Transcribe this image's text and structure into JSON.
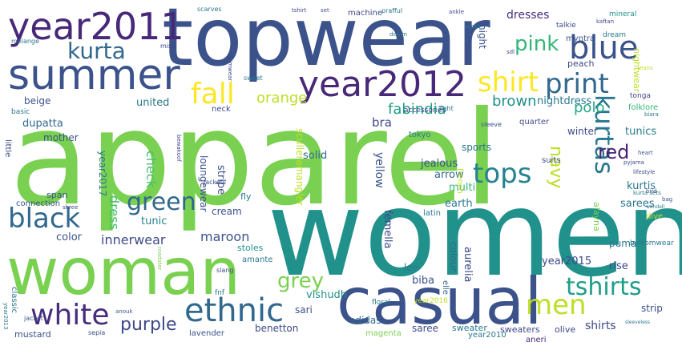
{
  "words": [
    {
      "text": "apparel",
      "color": "#7ad151",
      "rot": 0
    },
    {
      "text": "women",
      "color": "#21918c",
      "rot": 0
    },
    {
      "text": "topwear",
      "color": "#3b528b",
      "rot": 0
    },
    {
      "text": "woman",
      "color": "#7ad151",
      "rot": 0
    },
    {
      "text": "casual",
      "color": "#3b528b",
      "rot": 0
    },
    {
      "text": "summer",
      "color": "#3b528b",
      "rot": 0
    },
    {
      "text": "year2011",
      "color": "#482878",
      "rot": 0
    },
    {
      "text": "year2012",
      "color": "#482878",
      "rot": 0
    },
    {
      "text": "ethnic",
      "color": "#31688e",
      "rot": 0
    },
    {
      "text": "white",
      "color": "#472d7b",
      "rot": 0
    },
    {
      "text": "blue",
      "color": "#3b528b",
      "rot": 0
    },
    {
      "text": "print",
      "color": "#31688e",
      "rot": 0
    },
    {
      "text": "fall",
      "color": "#fde725",
      "rot": 0
    },
    {
      "text": "shirt",
      "color": "#fde725",
      "rot": 0
    },
    {
      "text": "kurta",
      "color": "#31688e",
      "rot": 0
    },
    {
      "text": "kurtas",
      "color": "#2a788e",
      "rot": 90
    },
    {
      "text": "tops",
      "color": "#26828e",
      "rot": 0
    },
    {
      "text": "black",
      "color": "#31688e",
      "rot": 0
    },
    {
      "text": "green",
      "color": "#31688e",
      "rot": 0
    },
    {
      "text": "men",
      "color": "#bddf26",
      "rot": 0
    },
    {
      "text": "tshirts",
      "color": "#1f9e89",
      "rot": 0
    },
    {
      "text": "pink",
      "color": "#35b779",
      "rot": 0
    },
    {
      "text": "grey",
      "color": "#7ad151",
      "rot": 0
    },
    {
      "text": "red",
      "color": "#481f71",
      "rot": 0
    },
    {
      "text": "purple",
      "color": "#3e4989",
      "rot": 0
    },
    {
      "text": "brown",
      "color": "#21918c",
      "rot": 0
    },
    {
      "text": "navy",
      "color": "#bddf26",
      "rot": 0
    },
    {
      "text": "orange",
      "color": "#bddf26",
      "rot": 0
    },
    {
      "text": "fabindia",
      "color": "#1f9e89",
      "rot": 0
    },
    {
      "text": "polo",
      "color": "#22a884",
      "rot": 0
    },
    {
      "text": "dresses",
      "color": "#472d7b",
      "rot": 0
    },
    {
      "text": "nightdress",
      "color": "#2a788e",
      "rot": 0
    },
    {
      "text": "dress",
      "color": "#44bf70",
      "rot": 90
    },
    {
      "text": "check",
      "color": "#44bf70",
      "rot": 90
    },
    {
      "text": "innerwear",
      "color": "#3e4989",
      "rot": 0
    },
    {
      "text": "maroon",
      "color": "#3b528b",
      "rot": 0
    },
    {
      "text": "shirts",
      "color": "#3e4989",
      "rot": 0
    },
    {
      "text": "kurtis",
      "color": "#2a788e",
      "rot": 0
    },
    {
      "text": "sarees",
      "color": "#2a788e",
      "rot": 0
    },
    {
      "text": "tunics",
      "color": "#2a788e",
      "rot": 0
    },
    {
      "text": "folklore",
      "color": "#35b779",
      "rot": 0
    },
    {
      "text": "winter",
      "color": "#3e4989",
      "rot": 0
    },
    {
      "text": "united",
      "color": "#2a788e",
      "rot": 0
    },
    {
      "text": "jealous",
      "color": "#3b528b",
      "rot": 0
    },
    {
      "text": "arrow",
      "color": "#31688e",
      "rot": 0
    },
    {
      "text": "multi",
      "color": "#35b779",
      "rot": 0
    },
    {
      "text": "earth",
      "color": "#2a788e",
      "rot": 0
    },
    {
      "text": "bra",
      "color": "#3e4989",
      "rot": 0
    },
    {
      "text": "sports",
      "color": "#2a788e",
      "rot": 0
    },
    {
      "text": "solid",
      "color": "#31688e",
      "rot": 0
    },
    {
      "text": "stripe",
      "color": "#3b528b",
      "rot": 90
    },
    {
      "text": "sculleramangler",
      "color": "#bddf26",
      "rot": 90
    },
    {
      "text": "yellow",
      "color": "#3b528b",
      "rot": 90
    },
    {
      "text": "tunic",
      "color": "#26828e",
      "rot": 0
    },
    {
      "text": "color",
      "color": "#3b528b",
      "rot": 0
    },
    {
      "text": "loungewear",
      "color": "#3b528b",
      "rot": 90
    },
    {
      "text": "year2017",
      "color": "#2a788e",
      "rot": 90
    },
    {
      "text": "dupatta",
      "color": "#31688e",
      "rot": 0
    },
    {
      "text": "mother",
      "color": "#3b528b",
      "rot": 0
    },
    {
      "text": "beige",
      "color": "#3b528b",
      "rot": 0
    },
    {
      "text": "cream",
      "color": "#3b528b",
      "rot": 0
    },
    {
      "text": "fly",
      "color": "#2a788e",
      "rot": 0
    },
    {
      "text": "stoles",
      "color": "#21918c",
      "rot": 0
    },
    {
      "text": "year2015",
      "color": "#3e4989",
      "rot": 0
    },
    {
      "text": "aurelia",
      "color": "#3e4989",
      "rot": 90
    },
    {
      "text": "rise",
      "color": "#3e4989",
      "rot": 0
    },
    {
      "text": "puma",
      "color": "#2a788e",
      "rot": 0
    },
    {
      "text": "biba",
      "color": "#3b528b",
      "rot": 0
    },
    {
      "text": "lee",
      "color": "#2a788e",
      "rot": 0
    },
    {
      "text": "femella",
      "color": "#3e4989",
      "rot": 90
    },
    {
      "text": "colour",
      "color": "#31688e",
      "rot": 90
    },
    {
      "text": "vishudh",
      "color": "#21918c",
      "rot": 0
    },
    {
      "text": "sari",
      "color": "#3b528b",
      "rot": 0
    },
    {
      "text": "adidas",
      "color": "#31688e",
      "rot": 0
    },
    {
      "text": "strip",
      "color": "#3b528b",
      "rot": 0
    },
    {
      "text": "benetton",
      "color": "#3e4989",
      "rot": 0
    },
    {
      "text": "saree",
      "color": "#3e4989",
      "rot": 0
    },
    {
      "text": "sweater",
      "color": "#2a788e",
      "rot": 0
    },
    {
      "text": "sweaters",
      "color": "#3e4989",
      "rot": 0
    },
    {
      "text": "olive",
      "color": "#3e4989",
      "rot": 0
    },
    {
      "text": "mustard",
      "color": "#3b528b",
      "rot": 0
    },
    {
      "text": "lavender",
      "color": "#3b528b",
      "rot": 0
    },
    {
      "text": "magenta",
      "color": "#7ad151",
      "rot": 0
    },
    {
      "text": "year2010",
      "color": "#2a788e",
      "rot": 0
    },
    {
      "text": "aneri",
      "color": "#482878",
      "rot": 0
    },
    {
      "text": "bottomwear",
      "color": "#2a788e",
      "rot": 0
    },
    {
      "text": "alayna",
      "color": "#7ad151",
      "rot": 90
    },
    {
      "text": "year2016",
      "color": "#bddf26",
      "rot": 0
    },
    {
      "text": "elle",
      "color": "#31688e",
      "rot": 90
    },
    {
      "text": "connection",
      "color": "#3b528b",
      "rot": 0
    },
    {
      "text": "span",
      "color": "#3b528b",
      "rot": 0
    },
    {
      "text": "little",
      "color": "#3e4989",
      "rot": 90
    },
    {
      "text": "amante",
      "color": "#2a788e",
      "rot": 0
    },
    {
      "text": "floral",
      "color": "#2a788e",
      "rot": 0
    },
    {
      "text": "dive",
      "color": "#bddf26",
      "rot": 0
    },
    {
      "text": "latin",
      "color": "#2a788e",
      "rot": 0
    },
    {
      "text": "classic",
      "color": "#2a788e",
      "rot": 90
    },
    {
      "text": "suits",
      "color": "#3e4989",
      "rot": 0
    },
    {
      "text": "tokyo",
      "color": "#2a788e",
      "rot": 0
    },
    {
      "text": "quarter",
      "color": "#3e4989",
      "rot": 0
    },
    {
      "text": "french",
      "color": "#bddf26",
      "rot": 90
    },
    {
      "text": "accessories",
      "color": "#3e4989",
      "rot": 0
    },
    {
      "text": "neck",
      "color": "#3e4989",
      "rot": 0
    },
    {
      "text": "night",
      "color": "#3b528b",
      "rot": 90
    },
    {
      "text": "nightwear",
      "color": "#bddf26",
      "rot": 90
    },
    {
      "text": "peach",
      "color": "#3e4989",
      "rot": 0
    },
    {
      "text": "myntra",
      "color": "#3b528b",
      "rot": 0
    },
    {
      "text": "dream",
      "color": "#2a788e",
      "rot": 0
    },
    {
      "text": "tonga",
      "color": "#3e4989",
      "rot": 0
    },
    {
      "text": "machine",
      "color": "#3e4989",
      "rot": 0
    },
    {
      "text": "mineral",
      "color": "#21918c",
      "rot": 0
    },
    {
      "text": "talkie",
      "color": "#3e4989",
      "rot": 0
    },
    {
      "text": "basic",
      "color": "#2a788e",
      "rot": 0
    },
    {
      "text": "melange",
      "color": "#2a788e",
      "rot": 0
    },
    {
      "text": "miss",
      "color": "#3e4989",
      "rot": 0
    },
    {
      "text": "sweet",
      "color": "#2a788e",
      "rot": 0
    },
    {
      "text": "scarves",
      "color": "#2a788e",
      "rot": 0
    },
    {
      "text": "light",
      "color": "#2a788e",
      "rot": 0
    },
    {
      "text": "sleeve",
      "color": "#3b528b",
      "rot": 0
    },
    {
      "text": "jackets",
      "color": "#3b528b",
      "rot": 0
    },
    {
      "text": "shree",
      "color": "#3e4989",
      "rot": 0
    },
    {
      "text": "fnf",
      "color": "#2a788e",
      "rot": 0
    },
    {
      "text": "sepia",
      "color": "#3b528b",
      "rot": 0
    },
    {
      "text": "jacket",
      "color": "#3b528b",
      "rot": 0
    },
    {
      "text": "year2013",
      "color": "#2a788e",
      "rot": 90
    },
    {
      "text": "swimwear",
      "color": "#3e4989",
      "rot": 90
    },
    {
      "text": "jeans",
      "color": "#bddf26",
      "rot": 0
    },
    {
      "text": "pyjama",
      "color": "#3e4989",
      "rot": 0
    },
    {
      "text": "lifestyle",
      "color": "#3e4989",
      "rot": 0
    },
    {
      "text": "kurta sets",
      "color": "#2a788e",
      "rot": 0
    },
    {
      "text": "heart",
      "color": "#3b528b",
      "rot": 0
    },
    {
      "text": "biara",
      "color": "#2a788e",
      "rot": 0
    },
    {
      "text": "kaftan",
      "color": "#3e4989",
      "rot": 0
    },
    {
      "text": "prafful",
      "color": "#2a788e",
      "rot": 0
    },
    {
      "text": "tshirt",
      "color": "#3e4989",
      "rot": 0
    },
    {
      "text": "sdl",
      "color": "#3e4989",
      "rot": 0
    },
    {
      "text": "set",
      "color": "#3b528b",
      "rot": 0
    },
    {
      "text": "bag",
      "color": "#3b528b",
      "rot": 0
    },
    {
      "text": "wendell",
      "color": "#2a788e",
      "rot": 0
    },
    {
      "text": "sleeveless",
      "color": "#2a788e",
      "rot": 0
    },
    {
      "text": "bird",
      "color": "#3b528b",
      "rot": 0
    },
    {
      "text": "ankle",
      "color": "#3e4989",
      "rot": 0
    },
    {
      "text": "socks",
      "color": "#2a788e",
      "rot": 0
    },
    {
      "text": "slang",
      "color": "#3e4989",
      "rot": 0
    },
    {
      "text": "anouk",
      "color": "#3b528b",
      "rot": 0
    },
    {
      "text": "denim",
      "color": "#2a788e",
      "rot": 0
    },
    {
      "text": "bewakoof",
      "color": "#3e4989",
      "rot": 90
    },
    {
      "text": "roadster",
      "color": "#7ad151",
      "rot": 90
    }
  ]
}
